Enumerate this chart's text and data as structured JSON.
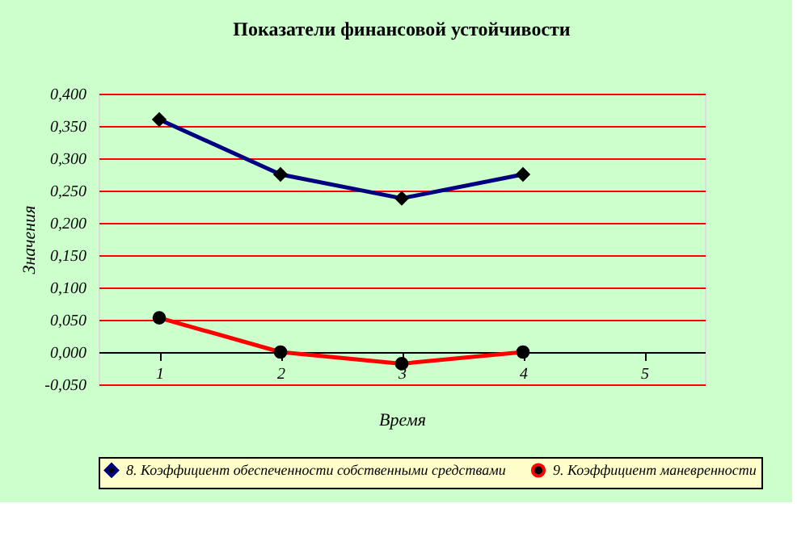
{
  "chart_data": {
    "type": "line",
    "title": "Показатели финансовой устойчивости",
    "xlabel": "Время",
    "ylabel": "Значения",
    "categories": [
      "1",
      "2",
      "3",
      "4",
      "5"
    ],
    "series": [
      {
        "name": "8. Коэффициент обеспеченности собственными средствами",
        "color": "#000080",
        "marker": "diamond",
        "values": [
          0.36,
          0.275,
          0.238,
          0.275,
          null
        ]
      },
      {
        "name": "9. Коэффициент маневренности",
        "color": "#ff0000",
        "marker": "circle",
        "values": [
          0.053,
          0.0,
          -0.018,
          0.0,
          null
        ]
      }
    ],
    "ylim": [
      -0.05,
      0.4
    ],
    "yticks": [
      {
        "value": -0.05,
        "label": "-0,050"
      },
      {
        "value": 0,
        "label": "0,000"
      },
      {
        "value": 0.05,
        "label": "0,050"
      },
      {
        "value": 0.1,
        "label": "0,100"
      },
      {
        "value": 0.15,
        "label": "0,150"
      },
      {
        "value": 0.2,
        "label": "0,200"
      },
      {
        "value": 0.25,
        "label": "0,250"
      },
      {
        "value": 0.3,
        "label": "0,300"
      },
      {
        "value": 0.35,
        "label": "0,350"
      },
      {
        "value": 0.4,
        "label": "0,400"
      }
    ],
    "grid": "y",
    "legend": "bottom",
    "line_style": "solid"
  }
}
